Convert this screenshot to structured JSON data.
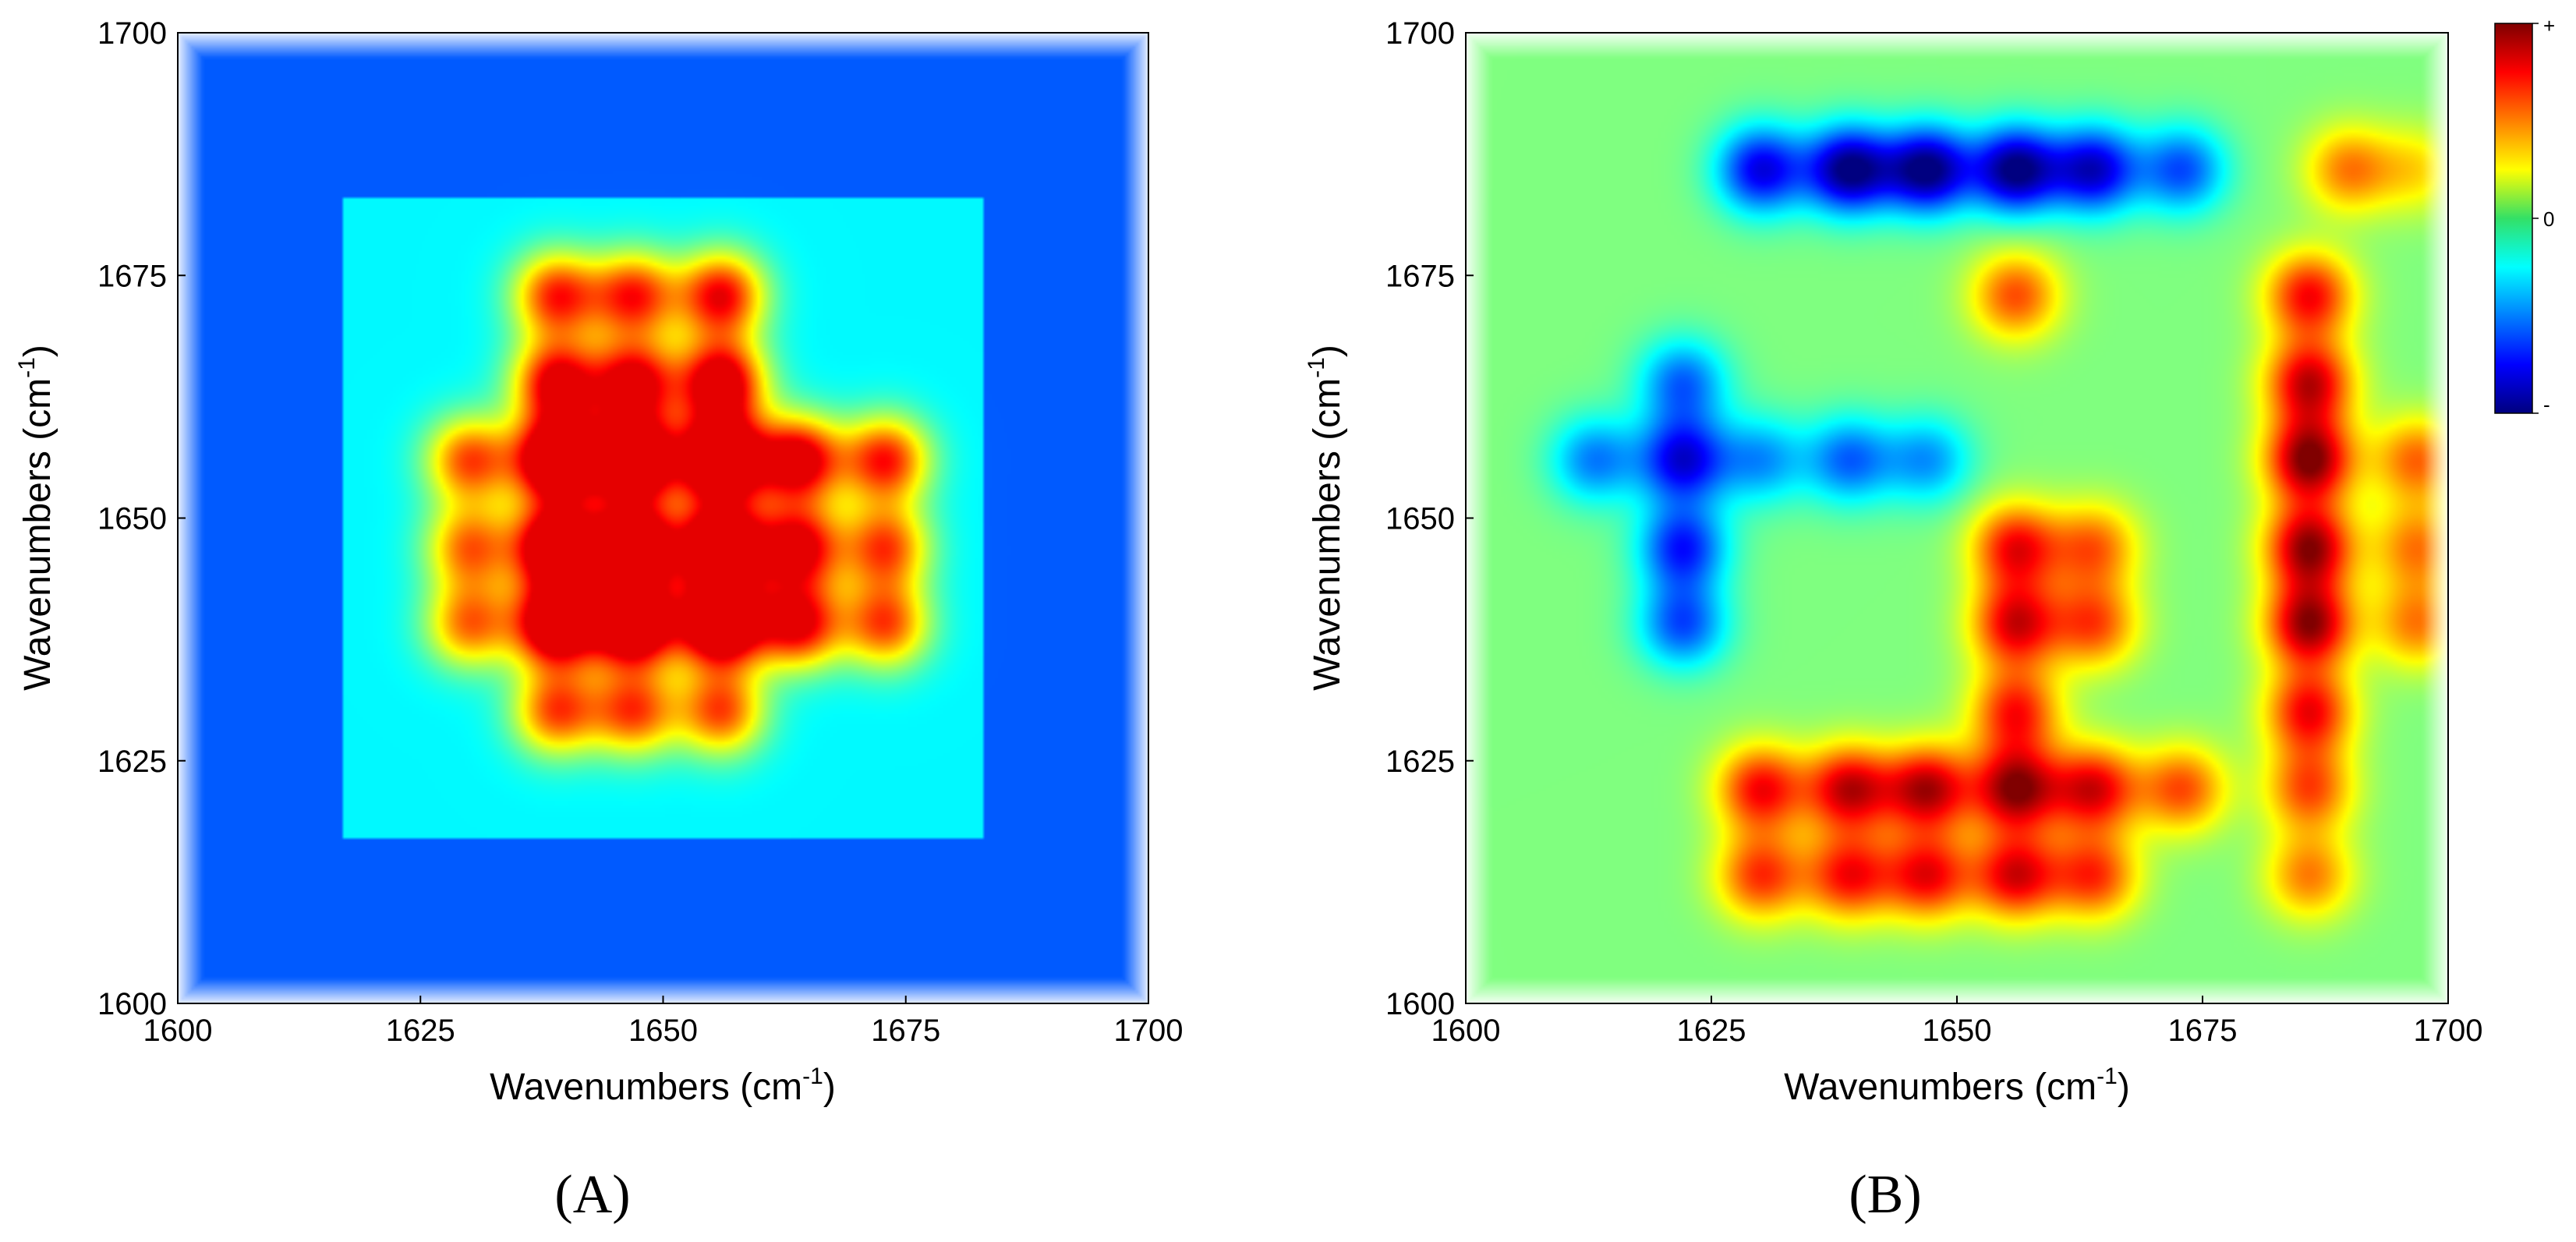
{
  "chart_data": [
    {
      "type": "heatmap",
      "subtitle": "(A)",
      "title": "",
      "xlabel": "Wavenumbers (cm-1)",
      "ylabel": "Wavenumbers (cm-1)",
      "xlim": [
        1600,
        1700
      ],
      "ylim": [
        1600,
        1700
      ],
      "xticks": [
        "1600",
        "1625",
        "1650",
        "1675",
        "1700"
      ],
      "yticks": [
        "1600",
        "1625",
        "1650",
        "1675",
        "1700"
      ],
      "z_range": [
        0,
        1
      ],
      "description_peaks": [
        {
          "x": 1639,
          "y": 1656,
          "z": 0.95
        },
        {
          "x": 1647,
          "y": 1656,
          "z": 0.97
        },
        {
          "x": 1656,
          "y": 1656,
          "z": 1.0
        },
        {
          "x": 1639,
          "y": 1647,
          "z": 0.92
        },
        {
          "x": 1647,
          "y": 1647,
          "z": 0.95
        },
        {
          "x": 1656,
          "y": 1647,
          "z": 0.97
        },
        {
          "x": 1639,
          "y": 1639,
          "z": 0.9
        },
        {
          "x": 1647,
          "y": 1639,
          "z": 0.93
        },
        {
          "x": 1656,
          "y": 1639,
          "z": 0.95
        },
        {
          "x": 1639,
          "y": 1664,
          "z": 0.7
        },
        {
          "x": 1647,
          "y": 1664,
          "z": 0.7
        },
        {
          "x": 1656,
          "y": 1664,
          "z": 0.78
        },
        {
          "x": 1664,
          "y": 1656,
          "z": 0.75
        },
        {
          "x": 1664,
          "y": 1647,
          "z": 0.7
        },
        {
          "x": 1664,
          "y": 1639,
          "z": 0.68
        },
        {
          "x": 1639,
          "y": 1673,
          "z": 0.6
        },
        {
          "x": 1647,
          "y": 1673,
          "z": 0.6
        },
        {
          "x": 1656,
          "y": 1673,
          "z": 0.66
        },
        {
          "x": 1673,
          "y": 1656,
          "z": 0.62
        },
        {
          "x": 1673,
          "y": 1647,
          "z": 0.55
        },
        {
          "x": 1673,
          "y": 1639,
          "z": 0.55
        },
        {
          "x": 1639,
          "y": 1630,
          "z": 0.55
        },
        {
          "x": 1647,
          "y": 1630,
          "z": 0.55
        },
        {
          "x": 1656,
          "y": 1630,
          "z": 0.55
        },
        {
          "x": 1630,
          "y": 1656,
          "z": 0.55
        },
        {
          "x": 1630,
          "y": 1647,
          "z": 0.5
        },
        {
          "x": 1630,
          "y": 1639,
          "z": 0.5
        }
      ]
    },
    {
      "type": "heatmap",
      "subtitle": "(B)",
      "title": "",
      "xlabel": "Wavenumbers (cm-1)",
      "ylabel": "Wavenumbers (cm-1)",
      "xlim": [
        1600,
        1700
      ],
      "ylim": [
        1600,
        1700
      ],
      "xticks": [
        "1600",
        "1625",
        "1650",
        "1675",
        "1700"
      ],
      "yticks": [
        "1600",
        "1625",
        "1650",
        "1675",
        "1700"
      ],
      "z_range": [
        -1,
        1
      ],
      "colorbar": {
        "top_label": "+",
        "mid_label": "0",
        "bottom_label": "-"
      },
      "description_peaks": [
        {
          "x": 1686,
          "y": 1656,
          "z": 1.0
        },
        {
          "x": 1686,
          "y": 1647,
          "z": 0.95
        },
        {
          "x": 1686,
          "y": 1639,
          "z": 0.95
        },
        {
          "x": 1686,
          "y": 1664,
          "z": 0.85
        },
        {
          "x": 1686,
          "y": 1673,
          "z": 0.75
        },
        {
          "x": 1686,
          "y": 1630,
          "z": 0.75
        },
        {
          "x": 1686,
          "y": 1622,
          "z": 0.6
        },
        {
          "x": 1686,
          "y": 1613,
          "z": 0.5
        },
        {
          "x": 1656,
          "y": 1622,
          "z": 0.95
        },
        {
          "x": 1647,
          "y": 1622,
          "z": 0.88
        },
        {
          "x": 1639,
          "y": 1622,
          "z": 0.85
        },
        {
          "x": 1630,
          "y": 1622,
          "z": 0.75
        },
        {
          "x": 1664,
          "y": 1622,
          "z": 0.8
        },
        {
          "x": 1673,
          "y": 1622,
          "z": 0.6
        },
        {
          "x": 1656,
          "y": 1613,
          "z": 0.8
        },
        {
          "x": 1647,
          "y": 1613,
          "z": 0.75
        },
        {
          "x": 1639,
          "y": 1613,
          "z": 0.72
        },
        {
          "x": 1630,
          "y": 1613,
          "z": 0.65
        },
        {
          "x": 1664,
          "y": 1613,
          "z": 0.65
        },
        {
          "x": 1656,
          "y": 1639,
          "z": 0.8
        },
        {
          "x": 1656,
          "y": 1647,
          "z": 0.75
        },
        {
          "x": 1656,
          "y": 1630,
          "z": 0.7
        },
        {
          "x": 1656,
          "y": 1673,
          "z": 0.6
        },
        {
          "x": 1664,
          "y": 1639,
          "z": 0.6
        },
        {
          "x": 1664,
          "y": 1647,
          "z": 0.55
        },
        {
          "x": 1697,
          "y": 1656,
          "z": 0.55
        },
        {
          "x": 1697,
          "y": 1647,
          "z": 0.5
        },
        {
          "x": 1697,
          "y": 1639,
          "z": 0.5
        },
        {
          "x": 1690,
          "y": 1686,
          "z": 0.5
        },
        {
          "x": 1697,
          "y": 1686,
          "z": 0.3
        },
        {
          "x": 1622,
          "y": 1656,
          "z": -0.8
        },
        {
          "x": 1622,
          "y": 1647,
          "z": -0.7
        },
        {
          "x": 1622,
          "y": 1639,
          "z": -0.6
        },
        {
          "x": 1622,
          "y": 1664,
          "z": -0.55
        },
        {
          "x": 1613,
          "y": 1656,
          "z": -0.5
        },
        {
          "x": 1639,
          "y": 1656,
          "z": -0.55
        },
        {
          "x": 1647,
          "y": 1656,
          "z": -0.45
        },
        {
          "x": 1630,
          "y": 1656,
          "z": -0.45
        },
        {
          "x": 1639,
          "y": 1686,
          "z": -1.0
        },
        {
          "x": 1647,
          "y": 1686,
          "z": -1.0
        },
        {
          "x": 1656,
          "y": 1686,
          "z": -1.0
        },
        {
          "x": 1630,
          "y": 1686,
          "z": -0.8
        },
        {
          "x": 1664,
          "y": 1686,
          "z": -0.85
        },
        {
          "x": 1673,
          "y": 1686,
          "z": -0.6
        }
      ]
    }
  ]
}
